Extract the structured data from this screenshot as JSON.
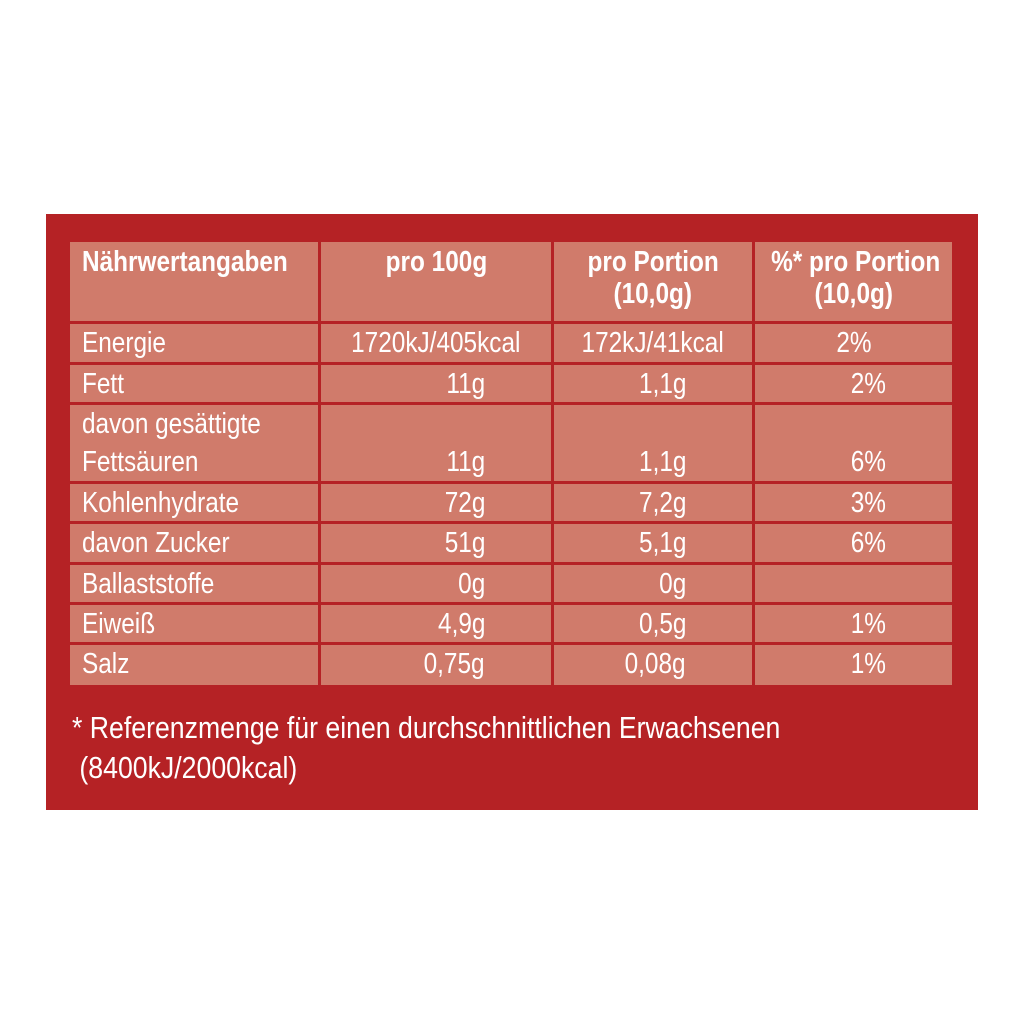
{
  "header": [
    "Nährwertangaben",
    "pro 100g",
    "pro Portion (10,0g)",
    "%* pro Portion (10,0g)"
  ],
  "header_lines": {
    "c3a": "pro Portion",
    "c3b": "(10,0g)",
    "c4a": "%* pro Portion",
    "c4b": "(10,0g)"
  },
  "rows": [
    {
      "name": "Energie",
      "per100": "1720kJ/405kcal",
      "portion": "172kJ/41kcal",
      "pct": "2%"
    },
    {
      "name": "Fett",
      "per100": "11g",
      "portion": "1,1g",
      "pct": "2%"
    },
    {
      "name": "davon gesättigte Fettsäuren",
      "name_a": "davon gesättigte",
      "name_b": "Fettsäuren",
      "per100": "11g",
      "portion": "1,1g",
      "pct": "6%"
    },
    {
      "name": "Kohlenhydrate",
      "per100": "72g",
      "portion": "7,2g",
      "pct": "3%"
    },
    {
      "name": "davon Zucker",
      "per100": "51g",
      "portion": "5,1g",
      "pct": "6%"
    },
    {
      "name": "Ballaststoffe",
      "per100": "0g",
      "portion": "0g",
      "pct": ""
    },
    {
      "name": "Eiweiß",
      "per100": "4,9g",
      "portion": "0,5g",
      "pct": "1%"
    },
    {
      "name": "Salz",
      "per100": "0,75g",
      "portion": "0,08g",
      "pct": "1%"
    }
  ],
  "footnote": {
    "line1": "* Referenzmenge für einen durchschnittlichen Erwachsenen",
    "line2": " (8400kJ/2000kcal)"
  },
  "colors": {
    "background": "#b52225",
    "cell": "#d07b6b",
    "text": "#ffffff"
  }
}
